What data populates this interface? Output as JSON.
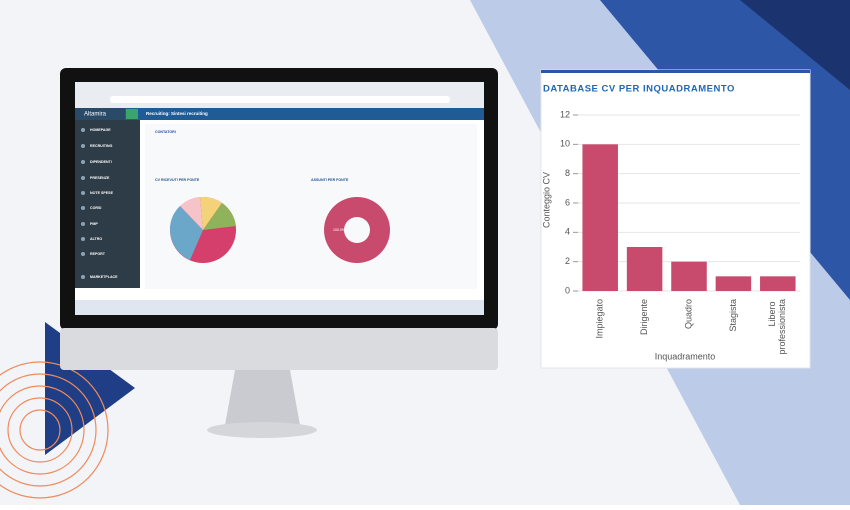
{
  "screen": {
    "logo": "Altamira",
    "app_title": "Recruiting: Sintesi recruiting",
    "menu": [
      "HOMEPAGE",
      "RECRUITING",
      "DIPENDENTI",
      "PRESENZE",
      "NOTE SPESE",
      "CORSI",
      "PMP",
      "ALTRO",
      "REPORT",
      "MARKETPLACE"
    ],
    "panels": [
      "CONTATORI",
      "CV RICEVUTI PER FONTE",
      "ASSUNTI PER FONTE"
    ],
    "donut_label": "100.0%"
  },
  "chart_data": {
    "type": "bar",
    "title": "DATABASE CV PER INQUADRAMENTO",
    "x_label": "Inquadramento",
    "y_label": "Conteggio CV",
    "categories": [
      "Impiegato",
      "Dirigente",
      "Quadro",
      "Stagista",
      "Libero professionista"
    ],
    "values": [
      10,
      3,
      2,
      1,
      1
    ],
    "color": "#c84b6e",
    "ylim": [
      0,
      12
    ],
    "yticks": [
      0,
      2,
      4,
      6,
      8,
      10,
      12
    ],
    "grid": true
  }
}
